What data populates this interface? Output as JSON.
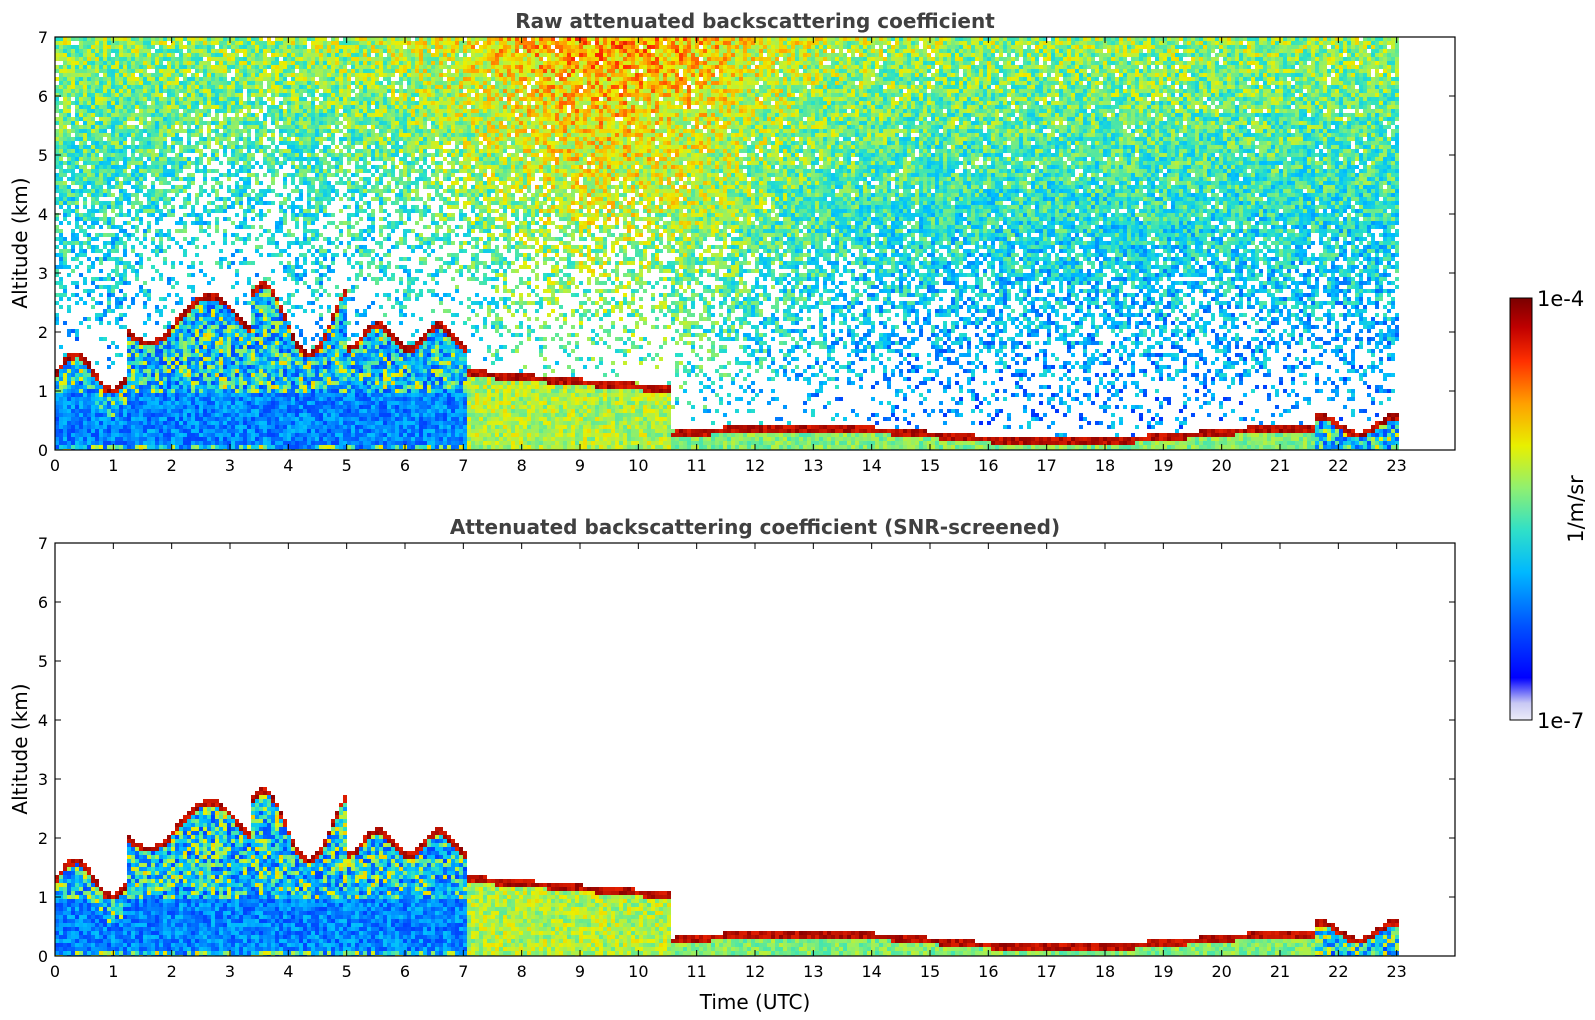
{
  "chart_data": [
    {
      "type": "heatmap",
      "title": "Raw attenuated backscattering coefficient",
      "xlabel": "",
      "ylabel": "Altitude (km)",
      "xlim": [
        0,
        24
      ],
      "ylim": [
        0,
        7
      ],
      "x_ticks": [
        "0",
        "1",
        "2",
        "3",
        "4",
        "5",
        "6",
        "7",
        "8",
        "9",
        "10",
        "11",
        "12",
        "13",
        "14",
        "15",
        "16",
        "17",
        "18",
        "19",
        "20",
        "21",
        "22",
        "23"
      ],
      "y_ticks": [
        "0",
        "1",
        "2",
        "3",
        "4",
        "5",
        "6",
        "7"
      ],
      "data_extent_x": [
        0,
        23
      ],
      "features": [
        {
          "name": "low cloud / aerosol layer 0-7 UTC",
          "x": [
            0,
            7
          ],
          "altitude_km": [
            1.2,
            3.2
          ]
        },
        {
          "name": "boundary layer 7-10.5 UTC",
          "x": [
            7,
            10.5
          ],
          "altitude_km": [
            0,
            1.7
          ]
        },
        {
          "name": "thin layer 10.5-21.6 UTC",
          "x": [
            10.5,
            21.6
          ],
          "altitude_km": [
            0.2,
            0.5
          ]
        },
        {
          "name": "noisy background aloft",
          "x": [
            0,
            23
          ],
          "altitude_km": [
            2,
            7
          ]
        }
      ]
    },
    {
      "type": "heatmap",
      "title": "Attenuated backscattering coefficient (SNR-screened)",
      "xlabel": "Time (UTC)",
      "ylabel": "Altitude (km)",
      "xlim": [
        0,
        24
      ],
      "ylim": [
        0,
        7
      ],
      "x_ticks": [
        "0",
        "1",
        "2",
        "3",
        "4",
        "5",
        "6",
        "7",
        "8",
        "9",
        "10",
        "11",
        "12",
        "13",
        "14",
        "15",
        "16",
        "17",
        "18",
        "19",
        "20",
        "21",
        "22",
        "23"
      ],
      "y_ticks": [
        "0",
        "1",
        "2",
        "3",
        "4",
        "5",
        "6",
        "7"
      ],
      "data_extent_x": [
        0,
        23
      ]
    }
  ],
  "colorbar": {
    "label": "1/m/sr",
    "max_label": "1e-4",
    "min_label": "1e-7",
    "scale": "log",
    "colormap": "jet",
    "colors": [
      "#e8e8f8",
      "#c0c0f0",
      "#0000ff",
      "#0060ff",
      "#00c0ff",
      "#40e0c0",
      "#a0f060",
      "#f0f000",
      "#ff9000",
      "#ff2000",
      "#a00000",
      "#800000"
    ]
  }
}
